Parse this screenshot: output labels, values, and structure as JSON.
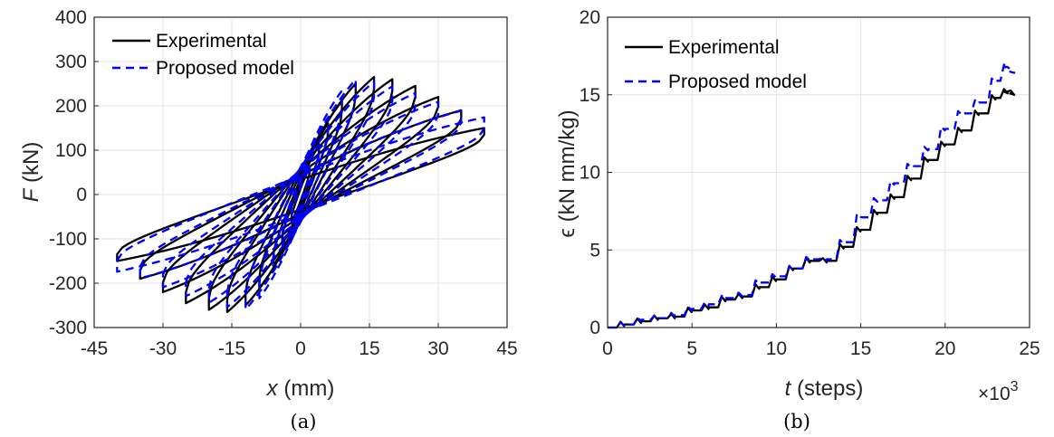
{
  "colors": {
    "experimental": "#000000",
    "model": "#0000ff"
  },
  "chart_data": [
    {
      "type": "line",
      "panel_label": "(a)",
      "xlabel_var": "x",
      "xlabel_unit": "(mm)",
      "ylabel_var": "F",
      "ylabel_unit": "(kN)",
      "xlim": [
        -45,
        45
      ],
      "ylim": [
        -300,
        400
      ],
      "x_ticks": [
        "-45",
        "-30",
        "-15",
        "0",
        "15",
        "30",
        "45"
      ],
      "y_ticks": [
        "-300",
        "-200",
        "-100",
        "0",
        "100",
        "200",
        "300",
        "400"
      ],
      "grid": true,
      "legend_position": "top-left",
      "series": [
        {
          "name": "Experimental",
          "style": "solid",
          "amplitudes": [
            2,
            4,
            6,
            9,
            12,
            16,
            20,
            25,
            30,
            35,
            40
          ],
          "peak_forces": [
            60,
            110,
            160,
            210,
            250,
            265,
            260,
            245,
            220,
            190,
            150
          ]
        },
        {
          "name": "Proposed model",
          "style": "dashed",
          "amplitudes": [
            2,
            4,
            6,
            9,
            12,
            16,
            20,
            25,
            30,
            35,
            40
          ],
          "peak_forces": [
            60,
            110,
            170,
            230,
            255,
            250,
            240,
            225,
            205,
            185,
            170
          ]
        }
      ]
    },
    {
      "type": "line",
      "panel_label": "(b)",
      "xlabel_var": "t",
      "xlabel_unit": "(steps)",
      "x_multiplier": "×10",
      "x_multiplier_exp": "3",
      "ylabel_var": "ϵ",
      "ylabel_unit": "(kN mm/kg)",
      "xlim": [
        0,
        25
      ],
      "ylim": [
        0,
        20
      ],
      "x_ticks": [
        "0",
        "5",
        "10",
        "15",
        "20",
        "25"
      ],
      "y_ticks": [
        "0",
        "5",
        "10",
        "15",
        "20"
      ],
      "grid": true,
      "legend_position": "top-left",
      "series": [
        {
          "name": "Experimental",
          "style": "solid",
          "x": [
            0,
            1,
            2,
            3,
            4,
            5,
            6,
            7,
            8,
            9,
            10,
            11,
            12,
            13,
            14,
            15,
            16,
            17,
            18,
            19,
            20,
            21,
            22,
            23,
            23.5,
            23.8
          ],
          "y": [
            0,
            0.2,
            0.4,
            0.6,
            0.7,
            1.1,
            1.3,
            1.8,
            2.0,
            2.6,
            3.1,
            3.8,
            4.3,
            4.3,
            5.2,
            6.3,
            7.4,
            8.4,
            9.6,
            10.8,
            11.8,
            12.7,
            13.8,
            14.8,
            15.2,
            15.1
          ]
        },
        {
          "name": "Proposed model",
          "style": "dashed",
          "x": [
            0,
            1,
            2,
            3,
            4,
            5,
            6,
            7,
            8,
            9,
            10,
            11,
            12,
            13,
            14,
            15,
            16,
            17,
            18,
            19,
            20,
            21,
            22,
            23,
            23.5,
            23.8
          ],
          "y": [
            0,
            0.2,
            0.5,
            0.6,
            0.8,
            1.2,
            1.5,
            1.9,
            2.1,
            2.9,
            3.3,
            3.8,
            4.4,
            4.4,
            5.5,
            7.1,
            8.2,
            9.3,
            10.4,
            11.5,
            12.8,
            13.8,
            14.5,
            15.9,
            16.8,
            16.5
          ]
        }
      ]
    }
  ]
}
